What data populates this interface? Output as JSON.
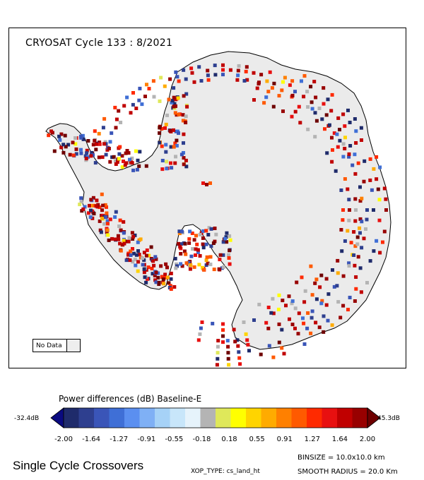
{
  "map": {
    "title": "CRYOSAT Cycle 133 : 8/2021",
    "no_data_label": "No Data",
    "no_data_color": "#eeeeee",
    "land_color": "#ebebeb",
    "coastline_color": "#000000"
  },
  "colorbar": {
    "title": "Power differences (dB) Baseline-E",
    "min_label": "-32.4dB",
    "max_label": "45.3dB",
    "tick_labels": [
      "-2.00",
      "-1.64",
      "-1.27",
      "-0.91",
      "-0.55",
      "-0.18",
      "0.18",
      "0.55",
      "0.91",
      "1.27",
      "1.64",
      "2.00"
    ],
    "colors": [
      "#0a0a80",
      "#1f2b6b",
      "#2e3f8f",
      "#3a55b8",
      "#3f6fd6",
      "#5b8ff0",
      "#7fb0f5",
      "#a6d2f7",
      "#c8e6fa",
      "#e6f3fb",
      "#b4b4b4",
      "#dfe85a",
      "#ffff00",
      "#ffd400",
      "#ffab00",
      "#ff8000",
      "#ff5a00",
      "#ff2a00",
      "#e81010",
      "#c00000",
      "#980000",
      "#6e0000"
    ]
  },
  "footer": {
    "title": "Single Cycle Crossovers",
    "binsize": "BINSIZE = 10.0x10.0 km",
    "xop_type": "XOP_TYPE: cs_land_ht",
    "smooth_radius": "SMOOTH RADIUS =   20.0 Km"
  }
}
